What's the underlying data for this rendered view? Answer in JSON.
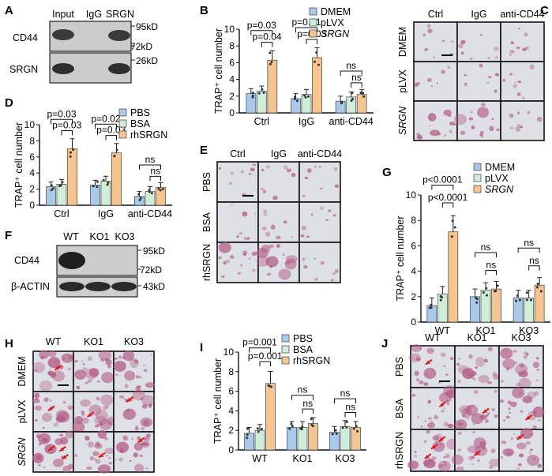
{
  "colors": {
    "blue": "#a9c9ea",
    "green": "#cfeeda",
    "orange": "#f6c48f",
    "blot_bg": "#cfcfcf",
    "blot_band": "#2a2a2a",
    "stain_bg": "#d9dde3",
    "cell": "#b45c86",
    "arrow": "#e31818"
  },
  "panels": {
    "A": {
      "letter": "A",
      "lanes": [
        "Input",
        "IgG",
        "SRGN"
      ],
      "rows": [
        "CD44",
        "SRGN"
      ],
      "markers": [
        "95kD",
        "72kD",
        "26kD"
      ]
    },
    "C": {
      "letter": "C",
      "cols": [
        "Ctrl",
        "IgG",
        "anti-CD44"
      ],
      "rows": [
        "DMEM",
        "pLVX",
        "SRGN"
      ]
    },
    "E": {
      "letter": "E",
      "cols": [
        "Ctrl",
        "IgG",
        "anti-CD44"
      ],
      "rows": [
        "PBS",
        "BSA",
        "rhSRGN"
      ]
    },
    "F": {
      "letter": "F",
      "lanes": [
        "WT",
        "KO1",
        "KO3"
      ],
      "rows": [
        "CD44",
        "β-ACTIN"
      ],
      "markers": [
        "95kD",
        "72kD",
        "43kD"
      ]
    },
    "H": {
      "letter": "H",
      "cols": [
        "WT",
        "KO1",
        "KO3"
      ],
      "rows": [
        "DMEM",
        "pLVX",
        "SRGN"
      ]
    },
    "J": {
      "letter": "J",
      "cols": [
        "WT",
        "KO1",
        "KO3"
      ],
      "rows": [
        "PBS",
        "BSA",
        "rhSRGN"
      ]
    }
  },
  "chart_data": [
    {
      "panel": "B",
      "type": "bar",
      "ylabel": "TRAP⁺ cell number",
      "ylim": [
        0,
        10
      ],
      "yticks": [
        0,
        2,
        4,
        6,
        8,
        10
      ],
      "categories": [
        "Ctrl",
        "IgG",
        "anti-CD44"
      ],
      "series": [
        {
          "name": "DMEM",
          "values": [
            2.3,
            1.7,
            1.4
          ]
        },
        {
          "name": "pLVX",
          "values": [
            2.6,
            2.2,
            1.9
          ]
        },
        {
          "name": "SRGN",
          "values": [
            6.3,
            6.6,
            2.2
          ]
        }
      ],
      "annotations": [
        "p=0.03",
        "p=0.04",
        "p=0.01",
        "p=0.03",
        "ns",
        "ns"
      ]
    },
    {
      "panel": "D",
      "type": "bar",
      "ylabel": "TRAP⁺ cell number",
      "ylim": [
        0,
        10
      ],
      "yticks": [
        0,
        2,
        4,
        6,
        8,
        10
      ],
      "categories": [
        "Ctrl",
        "IgG",
        "anti-CD44"
      ],
      "series": [
        {
          "name": "PBS",
          "values": [
            2.3,
            2.5,
            1.1
          ]
        },
        {
          "name": "BSA",
          "values": [
            2.6,
            3.0,
            1.7
          ]
        },
        {
          "name": "rhSRGN",
          "values": [
            7.0,
            6.5,
            2.2
          ]
        }
      ],
      "annotations": [
        "p=0.03",
        "p=0.03",
        "p=0.02",
        "p=0.03",
        "ns",
        "ns"
      ]
    },
    {
      "panel": "G",
      "type": "bar",
      "ylabel": "TRAP⁺ cell number",
      "ylim": [
        0,
        10
      ],
      "yticks": [
        0,
        2,
        4,
        6,
        8,
        10
      ],
      "categories": [
        "WT",
        "KO1",
        "KO3"
      ],
      "series": [
        {
          "name": "DMEM",
          "values": [
            1.3,
            2.0,
            1.9
          ]
        },
        {
          "name": "pLVX",
          "values": [
            2.2,
            2.5,
            1.9
          ]
        },
        {
          "name": "SRGN",
          "values": [
            7.1,
            2.6,
            2.9
          ]
        }
      ],
      "annotations": [
        "p<0.0001",
        "p<0.0001",
        "ns",
        "ns",
        "ns",
        "ns"
      ]
    },
    {
      "panel": "I",
      "type": "bar",
      "ylabel": "TRAP⁺ cell number",
      "ylim": [
        0,
        10
      ],
      "yticks": [
        0,
        2,
        4,
        6,
        8,
        10
      ],
      "categories": [
        "WT",
        "KO1",
        "KO3"
      ],
      "series": [
        {
          "name": "PBS",
          "values": [
            1.7,
            2.3,
            1.8
          ]
        },
        {
          "name": "BSA",
          "values": [
            2.0,
            2.3,
            2.4
          ]
        },
        {
          "name": "rhSRGN",
          "values": [
            6.8,
            2.7,
            2.3
          ]
        }
      ],
      "annotations": [
        "p=0.001",
        "p=0.001",
        "ns",
        "ns",
        "ns",
        "ns"
      ]
    }
  ]
}
